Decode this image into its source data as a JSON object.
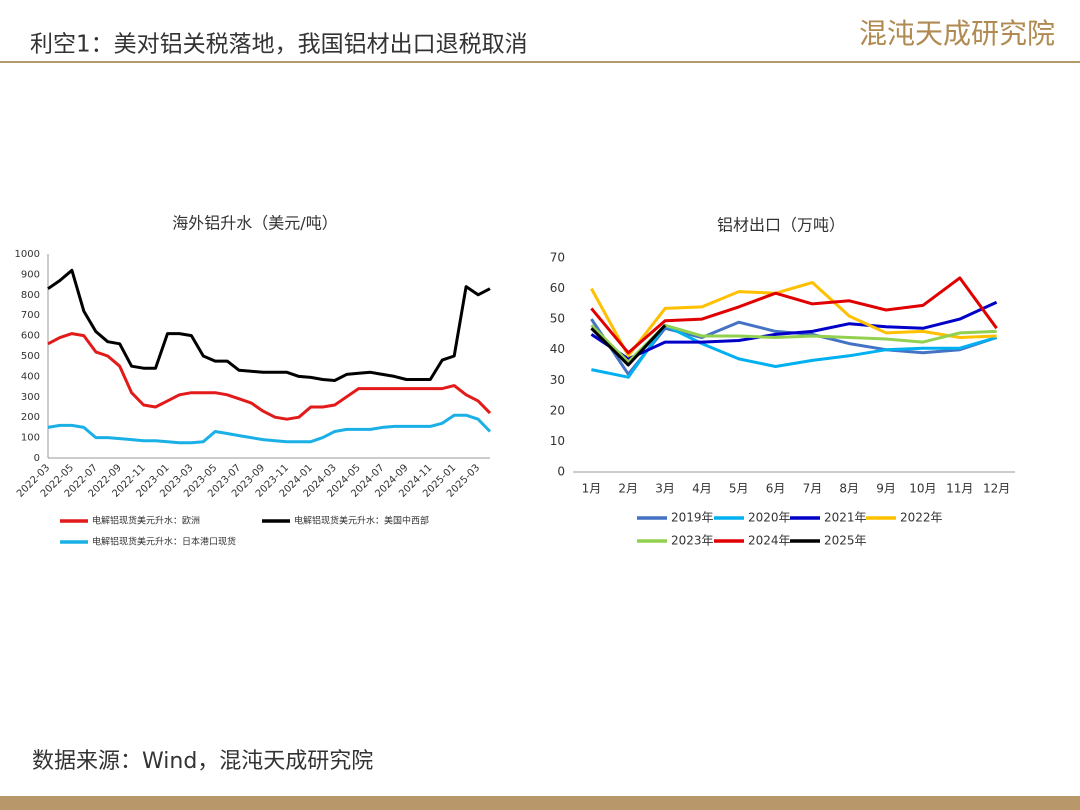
{
  "title": "利空1：美对铝关税落地，我国铝材出口退税取消",
  "logo": "混沌天成研究院",
  "source": "数据来源：Wind，混沌天成研究院",
  "chart_data": [
    {
      "type": "line",
      "title": "海外铝升水（美元/吨）",
      "categories": [
        "2022-03",
        null,
        "2022-05",
        null,
        "2022-07",
        null,
        "2022-09",
        null,
        "2022-11",
        null,
        "2023-01",
        null,
        "2023-03",
        null,
        "2023-05",
        null,
        "2023-07",
        null,
        "2023-09",
        null,
        "2023-11",
        null,
        "2024-01",
        null,
        "2024-03",
        null,
        "2024-05",
        null,
        "2024-07",
        null,
        "2024-09",
        null,
        "2024-11",
        null,
        "2025-01",
        null,
        "2025-03",
        null
      ],
      "ylim": [
        0,
        1000
      ],
      "yticks": [
        0,
        100,
        200,
        300,
        400,
        500,
        600,
        700,
        800,
        900,
        1000
      ],
      "grid": false,
      "series": [
        {
          "name": "电解铝现货美元升水：欧洲",
          "color": "#e21a1a",
          "values": [
            560,
            590,
            610,
            600,
            520,
            500,
            450,
            320,
            260,
            250,
            280,
            310,
            320,
            320,
            320,
            310,
            290,
            270,
            230,
            200,
            190,
            200,
            250,
            250,
            260,
            300,
            340,
            340,
            340,
            340,
            340,
            340,
            340,
            340,
            355,
            310,
            280,
            220
          ]
        },
        {
          "name": "电解铝现货美元升水：美国中西部",
          "color": "#000000",
          "values": [
            830,
            870,
            920,
            720,
            620,
            570,
            560,
            450,
            440,
            440,
            610,
            610,
            600,
            500,
            475,
            475,
            430,
            425,
            420,
            420,
            420,
            400,
            395,
            385,
            380,
            410,
            415,
            420,
            410,
            400,
            385,
            385,
            385,
            480,
            500,
            840,
            800,
            830
          ]
        },
        {
          "name": "电解铝现货美元升水：日本港口现货",
          "color": "#1ab0e6",
          "values": [
            150,
            160,
            160,
            150,
            100,
            100,
            95,
            90,
            85,
            85,
            80,
            75,
            75,
            80,
            130,
            120,
            110,
            100,
            90,
            85,
            80,
            80,
            80,
            100,
            130,
            140,
            140,
            140,
            150,
            155,
            155,
            155,
            155,
            170,
            210,
            210,
            190,
            130
          ]
        }
      ]
    },
    {
      "type": "line",
      "title": "铝材出口（万吨）",
      "categories": [
        "1月",
        "2月",
        "3月",
        "4月",
        "5月",
        "6月",
        "7月",
        "8月",
        "9月",
        "10月",
        "11月",
        "12月"
      ],
      "ylim": [
        0,
        70
      ],
      "yticks": [
        0,
        10,
        20,
        30,
        40,
        50,
        60,
        70
      ],
      "grid": false,
      "series": [
        {
          "name": "2019年",
          "color": "#4472c4",
          "values": [
            50,
            32,
            47,
            44,
            49,
            46,
            45,
            42,
            40,
            39,
            40,
            44
          ]
        },
        {
          "name": "2020年",
          "color": "#00b0f0",
          "values": [
            33.5,
            31,
            48,
            42,
            37,
            34.5,
            36.5,
            38,
            40,
            40.5,
            40.5,
            44
          ]
        },
        {
          "name": "2021年",
          "color": "#0000c8",
          "values": [
            45,
            37,
            42.5,
            42.5,
            43,
            45,
            46,
            48.5,
            47.5,
            47,
            50,
            55.5
          ]
        },
        {
          "name": "2022年",
          "color": "#ffc000",
          "values": [
            60,
            38,
            53.5,
            54,
            59,
            58.5,
            62,
            51,
            45.5,
            46,
            44,
            44.5
          ]
        },
        {
          "name": "2023年",
          "color": "#92d050",
          "values": [
            48,
            36,
            48,
            44.5,
            44.5,
            44,
            44.5,
            44,
            43.5,
            42.5,
            45.5,
            46
          ]
        },
        {
          "name": "2024年",
          "color": "#e00000",
          "values": [
            53.5,
            39,
            49.5,
            50,
            54,
            58.5,
            55,
            56,
            53,
            54.5,
            63.5,
            47
          ]
        },
        {
          "name": "2025年",
          "color": "#000000",
          "values": [
            47,
            35,
            48,
            null,
            null,
            null,
            null,
            null,
            null,
            null,
            null,
            null
          ]
        }
      ]
    }
  ]
}
